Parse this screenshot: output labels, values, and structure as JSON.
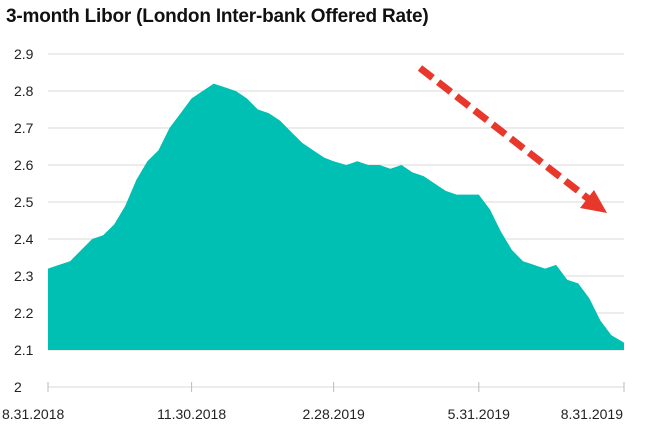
{
  "chart_data": {
    "type": "area",
    "title": "3-month Libor (London Inter-bank Offered Rate)",
    "xlabel": "",
    "ylabel": "",
    "ylim": [
      2.0,
      2.9
    ],
    "yticks": [
      "2",
      "2.1",
      "2.2",
      "2.3",
      "2.4",
      "2.5",
      "2.6",
      "2.7",
      "2.8",
      "2.9"
    ],
    "xticks": [
      "8.31.2018",
      "11.30.2018",
      "2.28.2019",
      "5.31.2019",
      "8.31.2019"
    ],
    "area_baseline": 2.1,
    "grid": "horizontal",
    "legend": "none",
    "colors": {
      "area": "#00bfb3",
      "grid": "#d9d9d9",
      "arrow": "#e8382c"
    },
    "annotation": "red dashed arrow pointing down-right, indicating a declining trend",
    "series": [
      {
        "x": [
          "2018-08-31",
          "2018-09-07",
          "2018-09-14",
          "2018-09-21",
          "2018-09-28",
          "2018-10-05",
          "2018-10-12",
          "2018-10-19",
          "2018-10-26",
          "2018-11-02",
          "2018-11-09",
          "2018-11-16",
          "2018-11-23",
          "2018-11-30",
          "2018-12-07",
          "2018-12-14",
          "2018-12-21",
          "2018-12-28",
          "2019-01-04",
          "2019-01-11",
          "2019-01-18",
          "2019-01-25",
          "2019-02-01",
          "2019-02-08",
          "2019-02-15",
          "2019-02-22",
          "2019-02-28",
          "2019-03-08",
          "2019-03-15",
          "2019-03-22",
          "2019-03-29",
          "2019-04-05",
          "2019-04-12",
          "2019-04-19",
          "2019-04-26",
          "2019-05-03",
          "2019-05-10",
          "2019-05-17",
          "2019-05-24",
          "2019-05-31",
          "2019-06-07",
          "2019-06-14",
          "2019-06-21",
          "2019-06-28",
          "2019-07-05",
          "2019-07-12",
          "2019-07-19",
          "2019-07-26",
          "2019-08-02",
          "2019-08-09",
          "2019-08-16",
          "2019-08-23",
          "2019-08-31"
        ],
        "values": [
          2.32,
          2.33,
          2.34,
          2.37,
          2.4,
          2.41,
          2.44,
          2.49,
          2.56,
          2.61,
          2.64,
          2.7,
          2.74,
          2.78,
          2.8,
          2.82,
          2.81,
          2.8,
          2.78,
          2.75,
          2.74,
          2.72,
          2.69,
          2.66,
          2.64,
          2.62,
          2.61,
          2.6,
          2.61,
          2.6,
          2.6,
          2.59,
          2.6,
          2.58,
          2.57,
          2.55,
          2.53,
          2.52,
          2.52,
          2.52,
          2.48,
          2.42,
          2.37,
          2.34,
          2.33,
          2.32,
          2.33,
          2.29,
          2.28,
          2.24,
          2.18,
          2.14,
          2.12
        ]
      }
    ]
  }
}
